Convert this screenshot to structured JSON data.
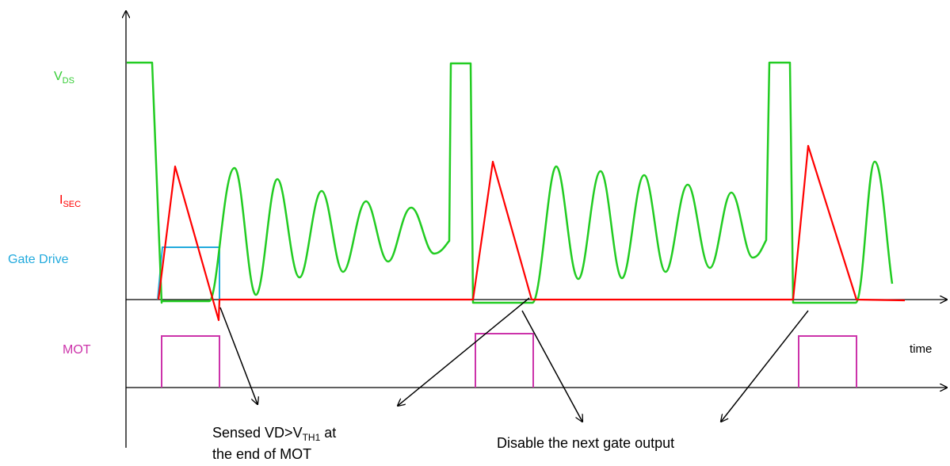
{
  "signals": {
    "vds": {
      "main": "V",
      "sub": "DS",
      "color": "#33cc33"
    },
    "isec": {
      "main": "I",
      "sub": "SEC",
      "color": "#ff0000"
    },
    "gate": {
      "label": "Gate Drive",
      "color": "#22aadd"
    },
    "mot": {
      "label": "MOT",
      "color": "#cc33aa"
    }
  },
  "axis": {
    "time_label": "time",
    "color": "#000000"
  },
  "annotations": {
    "sensed": {
      "line1_prefix": "Sensed VD>V",
      "line1_sub": "TH1",
      "line1_suffix": " at",
      "line2": "the end of MOT"
    },
    "disable": {
      "text": "Disable the next gate output"
    }
  }
}
